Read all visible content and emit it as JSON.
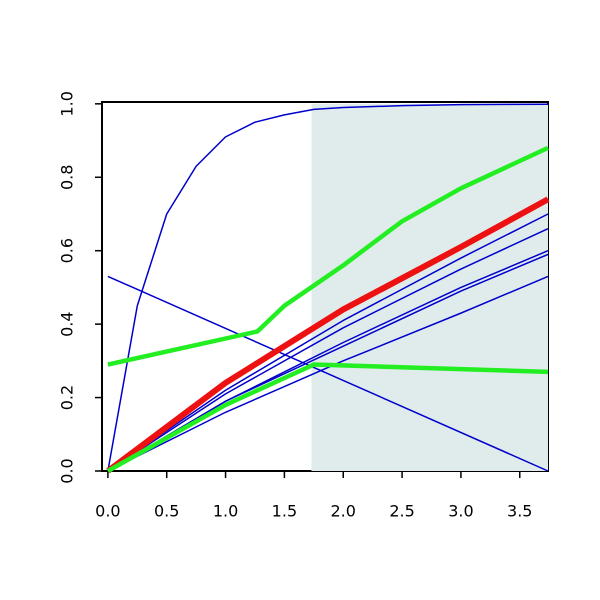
{
  "chart_data": {
    "type": "line",
    "xlim": [
      -0.05,
      3.74
    ],
    "ylim": [
      0,
      1.005
    ],
    "xticks": [
      {
        "value": 0,
        "label": "0.0"
      },
      0.5,
      {
        "value": 1,
        "label": "1.0"
      },
      1.5,
      {
        "value": 2,
        "label": "2.0"
      },
      2.5,
      {
        "value": 3,
        "label": "3.0"
      },
      3.5
    ],
    "yticks": [
      {
        "value": 0,
        "label": "0.0"
      },
      0.2,
      0.4,
      0.6,
      0.8,
      {
        "value": 1,
        "label": "1.0"
      }
    ],
    "highlight": {
      "x": [
        1.73,
        3.74
      ],
      "y": [
        0,
        1
      ],
      "color": "#e0ecec"
    },
    "series": [
      {
        "color": "#0000cc",
        "width": 1.5,
        "x": [
          0,
          0.25,
          0.5,
          0.75,
          1,
          1.25,
          1.5,
          1.75,
          2,
          2.5,
          3,
          3.74
        ],
        "values": [
          0,
          0.45,
          0.7,
          0.83,
          0.91,
          0.95,
          0.97,
          0.985,
          0.99,
          0.995,
          0.998,
          0.999
        ]
      },
      {
        "color": "#0000cc",
        "width": 1.5,
        "x": [
          0,
          3.74
        ],
        "values": [
          0.53,
          0
        ]
      },
      {
        "color": "#0000cc",
        "width": 1.5,
        "x": [
          0,
          1,
          2,
          3,
          3.74
        ],
        "values": [
          0,
          0.22,
          0.41,
          0.58,
          0.7
        ]
      },
      {
        "color": "#0000cc",
        "width": 1.5,
        "x": [
          0,
          1,
          2,
          3,
          3.74
        ],
        "values": [
          0,
          0.21,
          0.39,
          0.55,
          0.66
        ]
      },
      {
        "color": "#0000cc",
        "width": 1.5,
        "x": [
          0,
          1,
          2,
          3,
          3.74
        ],
        "values": [
          0,
          0.19,
          0.35,
          0.5,
          0.6
        ]
      },
      {
        "color": "#0000cc",
        "width": 1.5,
        "x": [
          0,
          1,
          2,
          3,
          3.74
        ],
        "values": [
          0,
          0.19,
          0.34,
          0.49,
          0.59
        ]
      },
      {
        "color": "#0000cc",
        "width": 1.5,
        "x": [
          0,
          1,
          2,
          3,
          3.74
        ],
        "values": [
          0,
          0.16,
          0.3,
          0.43,
          0.53
        ]
      },
      {
        "color": "#ee1111",
        "width": 6,
        "x": [
          0,
          1,
          2,
          3,
          3.74
        ],
        "values": [
          0,
          0.24,
          0.44,
          0.61,
          0.74
        ]
      },
      {
        "color": "#22ee22",
        "width": 4.5,
        "x": [
          0,
          1.27,
          1.5,
          2,
          2.5,
          3,
          3.74
        ],
        "values": [
          0.29,
          0.38,
          0.45,
          0.56,
          0.68,
          0.77,
          0.88
        ]
      },
      {
        "color": "#22ee22",
        "width": 4.5,
        "x": [
          0,
          1,
          1.75,
          3.74
        ],
        "values": [
          0,
          0.18,
          0.29,
          0.27
        ]
      }
    ]
  }
}
